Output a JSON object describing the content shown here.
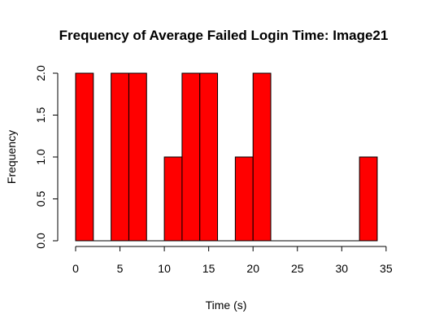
{
  "chart_data": {
    "type": "bar",
    "title": "Frequency of Average Failed Login Time: Image21",
    "xlabel": "Time (s)",
    "ylabel": "Frequency",
    "bar_color": "#ff0000",
    "bin_width": 2,
    "bins": [
      {
        "start": 0,
        "end": 2,
        "count": 2
      },
      {
        "start": 4,
        "end": 6,
        "count": 2
      },
      {
        "start": 6,
        "end": 8,
        "count": 2
      },
      {
        "start": 10,
        "end": 12,
        "count": 1
      },
      {
        "start": 12,
        "end": 14,
        "count": 2
      },
      {
        "start": 14,
        "end": 16,
        "count": 2
      },
      {
        "start": 18,
        "end": 20,
        "count": 1
      },
      {
        "start": 20,
        "end": 22,
        "count": 2
      },
      {
        "start": 32,
        "end": 34,
        "count": 1
      }
    ],
    "baseline_range": [
      0,
      34
    ],
    "xlim": [
      0,
      35
    ],
    "ylim": [
      0,
      2
    ],
    "x_ticks": [
      "0",
      "5",
      "10",
      "15",
      "20",
      "25",
      "30",
      "35"
    ],
    "y_ticks": [
      "0.0",
      "0.5",
      "1.0",
      "1.5",
      "2.0"
    ],
    "grid": false,
    "legend": "none"
  }
}
